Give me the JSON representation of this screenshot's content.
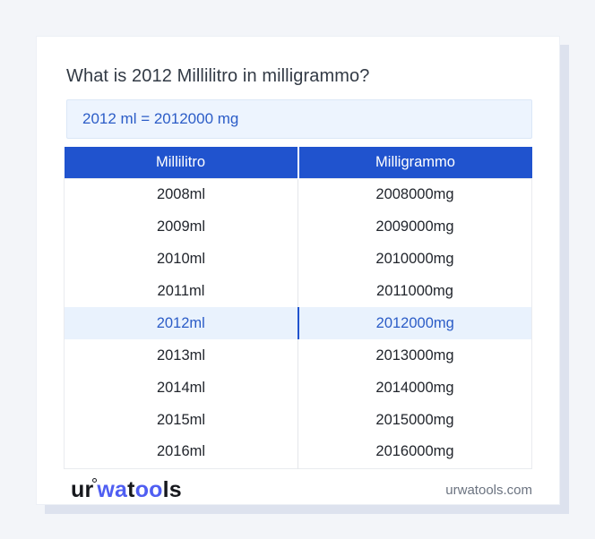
{
  "page": {
    "title": "What is 2012 Millilitro in milligrammo?",
    "result": "2012 ml = 2012000 mg"
  },
  "table": {
    "headers": [
      "Millilitro",
      "Milligrammo"
    ],
    "rows": [
      {
        "ml": "2008ml",
        "mg": "2008000mg",
        "highlight": false
      },
      {
        "ml": "2009ml",
        "mg": "2009000mg",
        "highlight": false
      },
      {
        "ml": "2010ml",
        "mg": "2010000mg",
        "highlight": false
      },
      {
        "ml": "2011ml",
        "mg": "2011000mg",
        "highlight": false
      },
      {
        "ml": "2012ml",
        "mg": "2012000mg",
        "highlight": true
      },
      {
        "ml": "2013ml",
        "mg": "2013000mg",
        "highlight": false
      },
      {
        "ml": "2014ml",
        "mg": "2014000mg",
        "highlight": false
      },
      {
        "ml": "2015ml",
        "mg": "2015000mg",
        "highlight": false
      },
      {
        "ml": "2016ml",
        "mg": "2016000mg",
        "highlight": false
      }
    ]
  },
  "footer": {
    "logo": {
      "p1": "ur",
      "p2": "wa",
      "p3": "t",
      "p4": "oo",
      "p5": "ls"
    },
    "site": "urwatools.com"
  },
  "colors": {
    "page_bg": "#f3f5f9",
    "card_shadow": "#dde2ee",
    "header_blue": "#2053ce",
    "result_bg": "#edf4fe",
    "result_border": "#dbe7f7",
    "result_text": "#2b5cc7",
    "highlight_bg": "#e9f2fd",
    "highlight_text": "#2b5cc7",
    "logo_blue": "#4f5ef2"
  }
}
